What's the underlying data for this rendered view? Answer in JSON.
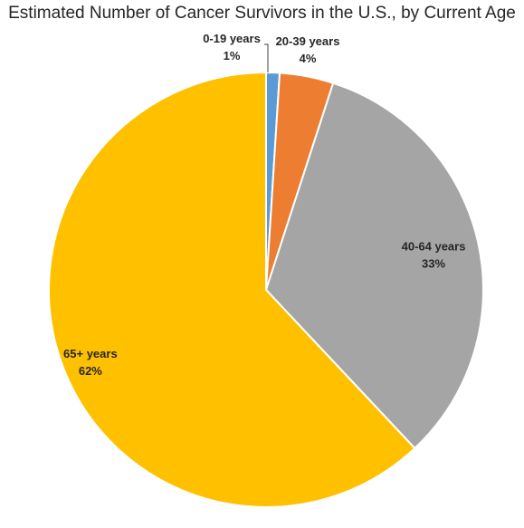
{
  "chart_data": {
    "type": "pie",
    "title": "Estimated Number of Cancer Survivors in the U.S., by Current Age",
    "categories": [
      "0-19 years",
      "20-39 years",
      "40-64 years",
      "65+ years"
    ],
    "values": [
      1,
      4,
      33,
      62
    ],
    "value_labels": [
      "1%",
      "4%",
      "33%",
      "62%"
    ],
    "colors": [
      "#5b9bd5",
      "#ed7d31",
      "#a5a5a5",
      "#ffc000"
    ],
    "start_angle_deg": 0,
    "direction": "clockwise",
    "legend": "none"
  }
}
